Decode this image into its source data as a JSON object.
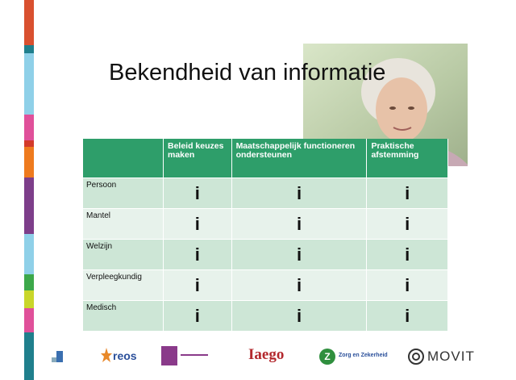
{
  "title": "Bekendheid van informatie",
  "table": {
    "headers": [
      "Beleid keuzes maken",
      "Maatschappelijk functioneren ondersteunen",
      "Praktische afstemming"
    ],
    "rows": [
      [
        "Persoon",
        "i",
        "i",
        "i"
      ],
      [
        "Mantel",
        "i",
        "i",
        "i"
      ],
      [
        "Welzijn",
        "i",
        "i",
        "i"
      ],
      [
        "Verpleegkundig",
        "i",
        "i",
        "i"
      ],
      [
        "Medisch",
        "i",
        "i",
        "i"
      ]
    ]
  },
  "footer": {
    "logos": [
      "reos",
      "Iaego",
      "Zorg en Zekerheid",
      "MOVIT"
    ]
  }
}
